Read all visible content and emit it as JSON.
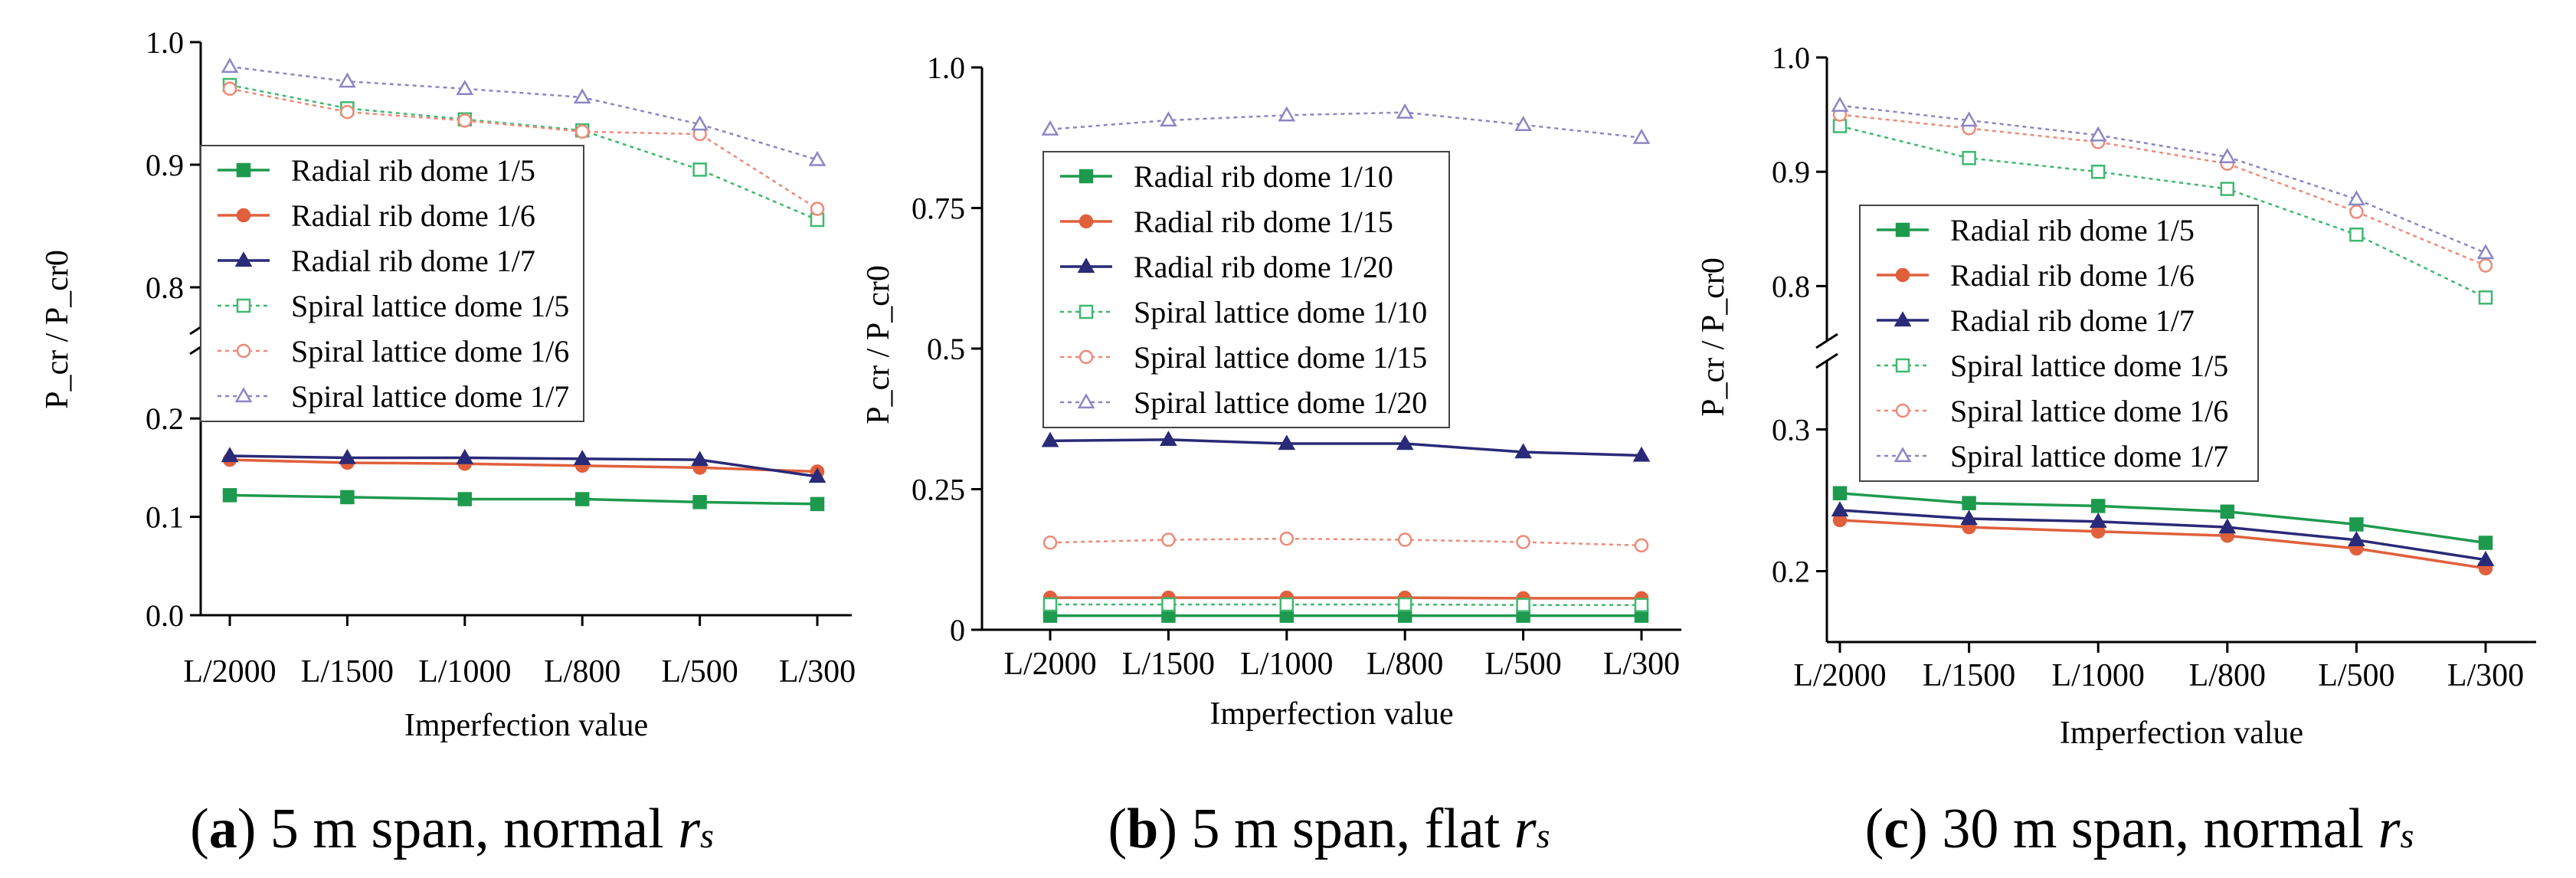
{
  "chart_data": [
    {
      "type": "line",
      "xlabel": "Imperfection value",
      "ylabel": "P_cr / P_cr0",
      "categories": [
        "L/2000",
        "L/1500",
        "L/1000",
        "L/800",
        "L/500",
        "L/300"
      ],
      "axis_break": true,
      "lower_range": [
        0.0,
        0.25
      ],
      "upper_range": [
        0.78,
        1.0
      ],
      "lower_ticks": [
        0.0,
        0.1,
        0.2
      ],
      "upper_ticks": [
        0.8,
        0.9,
        1.0
      ],
      "lower_tick_labels": [
        "0.0",
        "0.1",
        "0.2"
      ],
      "upper_tick_labels": [
        "0.8",
        "0.9",
        "1.0"
      ],
      "legend_position": "middle-left",
      "series": [
        {
          "name": "Radial rib dome 1/5",
          "values": [
            0.122,
            0.12,
            0.118,
            0.118,
            0.115,
            0.113
          ]
        },
        {
          "name": "Radial rib dome 1/6",
          "values": [
            0.158,
            0.155,
            0.154,
            0.152,
            0.15,
            0.146
          ]
        },
        {
          "name": "Radial rib dome 1/7",
          "values": [
            0.162,
            0.16,
            0.16,
            0.159,
            0.158,
            0.141
          ]
        },
        {
          "name": "Spiral lattice dome 1/5",
          "values": [
            0.965,
            0.946,
            0.937,
            0.928,
            0.896,
            0.855
          ]
        },
        {
          "name": "Spiral lattice dome 1/6",
          "values": [
            0.962,
            0.943,
            0.936,
            0.927,
            0.925,
            0.864
          ]
        },
        {
          "name": "Spiral lattice dome 1/7",
          "values": [
            0.98,
            0.968,
            0.962,
            0.955,
            0.933,
            0.904
          ]
        }
      ]
    },
    {
      "type": "line",
      "xlabel": "Imperfection value",
      "ylabel": "P_cr / P_cr0",
      "categories": [
        "L/2000",
        "L/1500",
        "L/1000",
        "L/800",
        "L/500",
        "L/300"
      ],
      "axis_break": false,
      "ylim": [
        0,
        1.0
      ],
      "ticks": [
        0,
        0.25,
        0.5,
        0.75,
        1.0
      ],
      "tick_labels": [
        "0",
        "0.25",
        "0.5",
        "0.75",
        "1.0"
      ],
      "legend_position": "upper-left",
      "series": [
        {
          "name": "Radial rib dome 1/10",
          "values": [
            0.025,
            0.025,
            0.025,
            0.025,
            0.025,
            0.025
          ]
        },
        {
          "name": "Radial rib dome 1/15",
          "values": [
            0.057,
            0.057,
            0.057,
            0.057,
            0.056,
            0.056
          ]
        },
        {
          "name": "Radial rib dome 1/20",
          "values": [
            0.336,
            0.338,
            0.331,
            0.331,
            0.316,
            0.31
          ]
        },
        {
          "name": "Spiral lattice dome 1/10",
          "values": [
            0.045,
            0.045,
            0.045,
            0.045,
            0.044,
            0.044
          ]
        },
        {
          "name": "Spiral lattice dome 1/15",
          "values": [
            0.155,
            0.16,
            0.162,
            0.16,
            0.156,
            0.15
          ]
        },
        {
          "name": "Spiral lattice dome 1/20",
          "values": [
            0.89,
            0.906,
            0.915,
            0.92,
            0.898,
            0.875
          ]
        }
      ]
    },
    {
      "type": "line",
      "xlabel": "Imperfection value",
      "ylabel": "P_cr / P_cr0",
      "categories": [
        "L/2000",
        "L/1500",
        "L/1000",
        "L/800",
        "L/500",
        "L/300"
      ],
      "axis_break": true,
      "lower_range": [
        0.15,
        0.35
      ],
      "upper_range": [
        0.75,
        1.0
      ],
      "lower_ticks": [
        0.2,
        0.3
      ],
      "upper_ticks": [
        0.8,
        0.9,
        1.0
      ],
      "lower_tick_labels": [
        "0.2",
        "0.3"
      ],
      "upper_tick_labels": [
        "0.8",
        "0.9",
        "1.0"
      ],
      "legend_position": "middle-left",
      "series": [
        {
          "name": "Radial rib dome 1/5",
          "values": [
            0.255,
            0.248,
            0.246,
            0.242,
            0.233,
            0.22
          ]
        },
        {
          "name": "Radial rib dome 1/6",
          "values": [
            0.236,
            0.231,
            0.228,
            0.225,
            0.216,
            0.202
          ]
        },
        {
          "name": "Radial rib dome 1/7",
          "values": [
            0.243,
            0.237,
            0.235,
            0.231,
            0.222,
            0.208
          ]
        },
        {
          "name": "Spiral lattice dome 1/5",
          "values": [
            0.94,
            0.912,
            0.9,
            0.885,
            0.845,
            0.79
          ]
        },
        {
          "name": "Spiral lattice dome 1/6",
          "values": [
            0.95,
            0.938,
            0.926,
            0.907,
            0.865,
            0.818
          ]
        },
        {
          "name": "Spiral lattice dome 1/7",
          "values": [
            0.958,
            0.945,
            0.932,
            0.913,
            0.876,
            0.829
          ]
        }
      ]
    }
  ],
  "series_styles": [
    {
      "color": "#1e9a4e",
      "marker": "filled-square",
      "line": "solid"
    },
    {
      "color": "#e0603c",
      "marker": "filled-circle",
      "line": "solid"
    },
    {
      "color": "#2a2a78",
      "marker": "filled-triangle",
      "line": "solid"
    },
    {
      "color": "#3fb86f",
      "marker": "open-square",
      "line": "dotted"
    },
    {
      "color": "#ee8a78",
      "marker": "open-circle",
      "line": "dotted"
    },
    {
      "color": "#8c86c4",
      "marker": "open-triangle",
      "line": "dotted"
    }
  ],
  "captions": [
    {
      "letter": "a",
      "text_before": " 5 m span, normal ",
      "var": "r",
      "sub": "s"
    },
    {
      "letter": "b",
      "text_before": " 5 m span, flat ",
      "var": "r",
      "sub": "s"
    },
    {
      "letter": "c",
      "text_before": " 30 m span, normal ",
      "var": "r",
      "sub": "s"
    }
  ]
}
